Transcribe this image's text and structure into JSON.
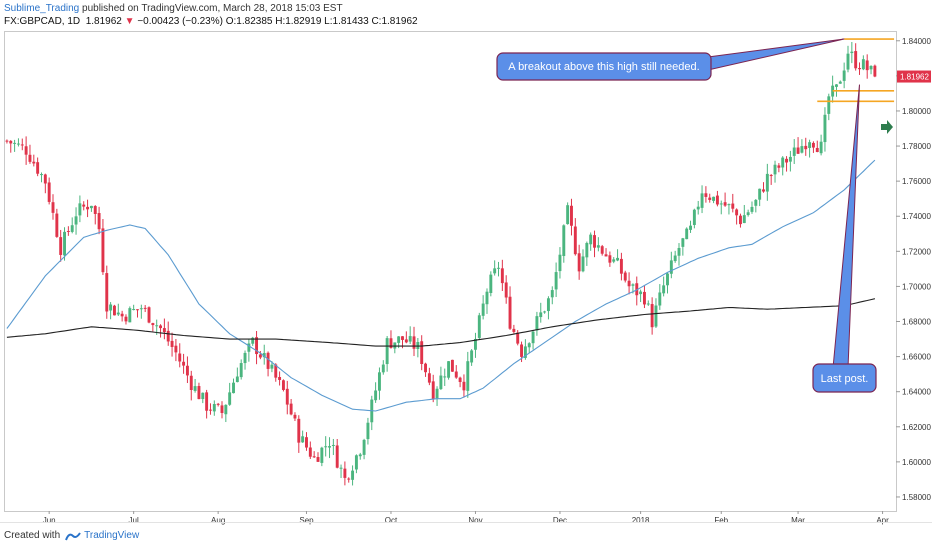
{
  "header": {
    "author": "Sublime_Trading",
    "published": "published on TradingView.com, March 28, 2018 15:03 EST",
    "symbol": "FX:GBPCAD, 1D",
    "last": "1.81962",
    "change_arrow": "▼",
    "change": "−0.00423 (−0.23%)",
    "o_label": "O:",
    "o_value": "1.82385",
    "h_label": "H:",
    "h_value": "1.82919",
    "l_label": "L:",
    "l_value": "1.81433",
    "c_label": "C:",
    "c_value": "1.81962"
  },
  "footer": {
    "created_with": "Created with",
    "brand": "TradingView",
    "logo_icon": "tradingview-logo-icon"
  },
  "colors": {
    "up": "#4bb57f",
    "down": "#e0334a",
    "ma_fast": "#5b9bd0",
    "ma_slow": "#222222",
    "level": "#f5a623",
    "callout_fill": "#5b8fe8",
    "callout_border": "#7b2552",
    "price_label_bg": "#e0334a"
  },
  "chart_data": {
    "type": "candlestick",
    "title": "",
    "y_ticks": [
      "1.84000",
      "1.82000",
      "1.80000",
      "1.78000",
      "1.76000",
      "1.74000",
      "1.72000",
      "1.70000",
      "1.68000",
      "1.66000",
      "1.64000",
      "1.62000",
      "1.60000",
      "1.58000"
    ],
    "ylim": [
      1.572,
      1.845
    ],
    "x_ticks": [
      "Jun",
      "Jul",
      "Aug",
      "Sep",
      "Oct",
      "Nov",
      "Dec",
      "2018",
      "Feb",
      "Mar",
      "Apr"
    ],
    "x_ticks_idx": [
      11,
      33,
      55,
      78,
      100,
      122,
      144,
      165,
      186,
      206,
      228
    ],
    "n_bars": 232,
    "anchors": [
      [
        0,
        1.783
      ],
      [
        5,
        1.778
      ],
      [
        10,
        1.76
      ],
      [
        14,
        1.722
      ],
      [
        18,
        1.742
      ],
      [
        22,
        1.748
      ],
      [
        24,
        1.733
      ],
      [
        26,
        1.69
      ],
      [
        30,
        1.683
      ],
      [
        35,
        1.688
      ],
      [
        40,
        1.676
      ],
      [
        44,
        1.662
      ],
      [
        48,
        1.645
      ],
      [
        52,
        1.632
      ],
      [
        56,
        1.628
      ],
      [
        60,
        1.652
      ],
      [
        64,
        1.668
      ],
      [
        68,
        1.655
      ],
      [
        72,
        1.64
      ],
      [
        76,
        1.615
      ],
      [
        80,
        1.602
      ],
      [
        84,
        1.612
      ],
      [
        88,
        1.59
      ],
      [
        92,
        1.608
      ],
      [
        95,
        1.632
      ],
      [
        99,
        1.668
      ],
      [
        103,
        1.67
      ],
      [
        107,
        1.665
      ],
      [
        111,
        1.64
      ],
      [
        115,
        1.656
      ],
      [
        119,
        1.645
      ],
      [
        122,
        1.67
      ],
      [
        125,
        1.698
      ],
      [
        128,
        1.712
      ],
      [
        131,
        1.68
      ],
      [
        134,
        1.663
      ],
      [
        138,
        1.68
      ],
      [
        142,
        1.696
      ],
      [
        146,
        1.742
      ],
      [
        149,
        1.712
      ],
      [
        152,
        1.728
      ],
      [
        156,
        1.718
      ],
      [
        159,
        1.712
      ],
      [
        162,
        1.7
      ],
      [
        166,
        1.694
      ],
      [
        168,
        1.68
      ],
      [
        171,
        1.7
      ],
      [
        175,
        1.722
      ],
      [
        178,
        1.732
      ],
      [
        181,
        1.755
      ],
      [
        184,
        1.75
      ],
      [
        188,
        1.745
      ],
      [
        191,
        1.738
      ],
      [
        195,
        1.748
      ],
      [
        198,
        1.762
      ],
      [
        202,
        1.77
      ],
      [
        206,
        1.778
      ],
      [
        209,
        1.785
      ],
      [
        212,
        1.779
      ],
      [
        214,
        1.808
      ],
      [
        216,
        1.812
      ],
      [
        218,
        1.826
      ],
      [
        219,
        1.834
      ],
      [
        221,
        1.828
      ],
      [
        223,
        1.826
      ],
      [
        225,
        1.822
      ],
      [
        226,
        1.8196
      ]
    ],
    "ma_fast": [
      [
        0,
        1.676
      ],
      [
        10,
        1.706
      ],
      [
        20,
        1.728
      ],
      [
        26,
        1.732
      ],
      [
        32,
        1.735
      ],
      [
        36,
        1.733
      ],
      [
        42,
        1.718
      ],
      [
        50,
        1.69
      ],
      [
        58,
        1.673
      ],
      [
        66,
        1.662
      ],
      [
        74,
        1.648
      ],
      [
        82,
        1.638
      ],
      [
        90,
        1.63
      ],
      [
        96,
        1.629
      ],
      [
        104,
        1.634
      ],
      [
        112,
        1.636
      ],
      [
        118,
        1.636
      ],
      [
        124,
        1.642
      ],
      [
        132,
        1.656
      ],
      [
        140,
        1.668
      ],
      [
        148,
        1.68
      ],
      [
        156,
        1.69
      ],
      [
        164,
        1.698
      ],
      [
        172,
        1.708
      ],
      [
        180,
        1.716
      ],
      [
        188,
        1.722
      ],
      [
        194,
        1.724
      ],
      [
        202,
        1.734
      ],
      [
        210,
        1.742
      ],
      [
        218,
        1.755
      ],
      [
        226,
        1.772
      ]
    ],
    "ma_slow": [
      [
        0,
        1.671
      ],
      [
        10,
        1.673
      ],
      [
        22,
        1.677
      ],
      [
        34,
        1.675
      ],
      [
        46,
        1.672
      ],
      [
        58,
        1.67
      ],
      [
        70,
        1.67
      ],
      [
        84,
        1.668
      ],
      [
        96,
        1.666
      ],
      [
        108,
        1.666
      ],
      [
        118,
        1.668
      ],
      [
        130,
        1.672
      ],
      [
        142,
        1.677
      ],
      [
        154,
        1.681
      ],
      [
        166,
        1.684
      ],
      [
        178,
        1.686
      ],
      [
        188,
        1.688
      ],
      [
        198,
        1.687
      ],
      [
        208,
        1.688
      ],
      [
        218,
        1.689
      ],
      [
        226,
        1.693
      ]
    ],
    "levels": [
      {
        "price": 1.841,
        "from": 218,
        "to": 231
      },
      {
        "price": 1.8115,
        "from": 215,
        "to": 231
      },
      {
        "price": 1.8055,
        "from": 211,
        "to": 231
      }
    ],
    "last_price": 1.81962,
    "last_price_label": "1.81962",
    "annotations": [
      {
        "text": "A breakout above this high still needed.",
        "target_idx": 218,
        "target_price": 1.841
      },
      {
        "text": "Last post.",
        "target_idx": 222,
        "target_price": 1.815
      }
    ]
  }
}
